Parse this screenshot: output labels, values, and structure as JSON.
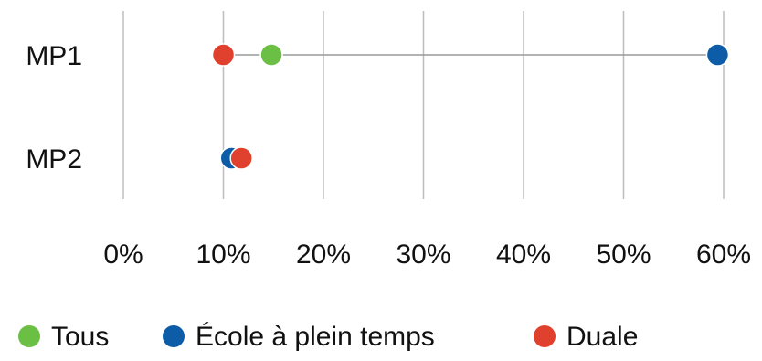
{
  "chart_data": {
    "type": "scatter",
    "subtype": "dot-plot",
    "title": "",
    "xlabel": "",
    "ylabel": "",
    "categories": [
      "MP1",
      "MP2"
    ],
    "x_ticks": [
      "0%",
      "10%",
      "20%",
      "30%",
      "40%",
      "50%",
      "60%"
    ],
    "xlim": [
      0,
      60
    ],
    "grid": "vertical",
    "legend_position": "bottom",
    "connector_lines": true,
    "series": [
      {
        "name": "Tous",
        "color": "#6cbf45",
        "values": [
          14.8,
          11.3
        ]
      },
      {
        "name": "École à plein temps",
        "color": "#0d5ca8",
        "values": [
          59.4,
          10.8
        ]
      },
      {
        "name": "Duale",
        "color": "#e0402e",
        "values": [
          10.0,
          11.8
        ]
      }
    ],
    "draw_order": [
      0,
      1,
      2
    ]
  }
}
